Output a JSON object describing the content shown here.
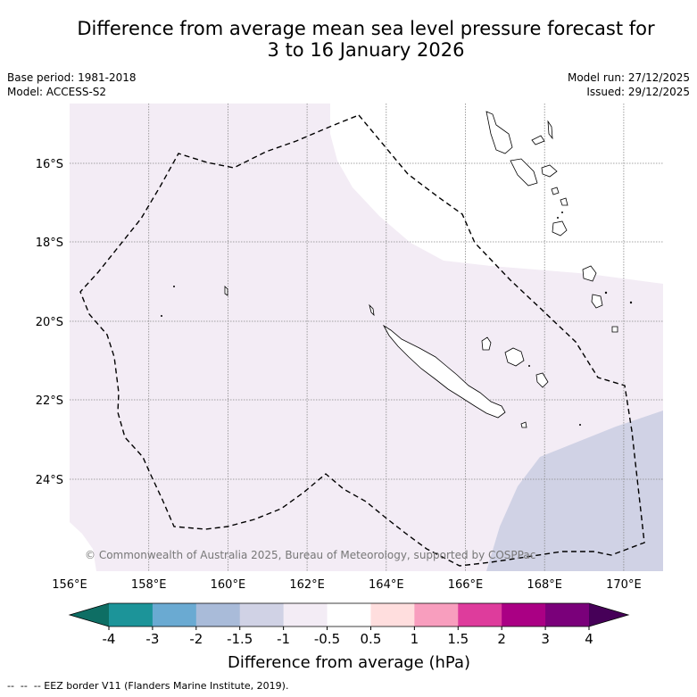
{
  "title_line1": "Difference from average mean sea level pressure forecast for",
  "title_line2": "3 to 16 January 2026",
  "base_period": "Base period: 1981-2018",
  "model": "Model: ACCESS-S2",
  "model_run": "Model run: 27/12/2025",
  "issued": "Issued: 29/12/2025",
  "copyright": "© Commonwealth of Australia 2025, Bureau of Meteorology, supported by COSPPac",
  "lat_labels": [
    "16°S",
    "18°S",
    "20°S",
    "22°S",
    "24°S"
  ],
  "lon_labels": [
    "156°E",
    "158°E",
    "160°E",
    "162°E",
    "164°E",
    "166°E",
    "168°E",
    "170°E"
  ],
  "colorbar": {
    "label": "Difference from average (hPa)",
    "ticks": [
      "-4",
      "-3",
      "-2",
      "-1.5",
      "-1",
      "-0.5",
      "0.5",
      "1",
      "1.5",
      "2",
      "3",
      "4"
    ],
    "colors": [
      "#0e6e64",
      "#1c9499",
      "#6aaad2",
      "#a9bbd9",
      "#d0d2e5",
      "#f3ecf5",
      "#ffffff",
      "#ffdede",
      "#f89ebe",
      "#de3c9c",
      "#aa0084",
      "#7a007a",
      "#460058"
    ],
    "extend_low": "#0e6e64",
    "extend_high": "#460058"
  },
  "legend_eez": "-- EEZ border V11 (Flanders Marine Institute, 2019).",
  "regions": {
    "light_purple": "#f3ecf5",
    "medium_purple": "#d0d2e5"
  }
}
